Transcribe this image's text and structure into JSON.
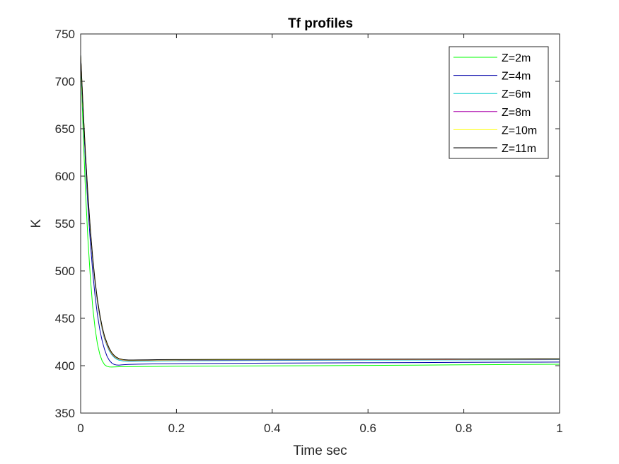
{
  "chart_data": {
    "type": "line",
    "title": "Tf profiles",
    "xlabel": "Time sec",
    "ylabel": "K",
    "xlim": [
      0,
      1
    ],
    "ylim": [
      350,
      750
    ],
    "xticks": [
      0,
      0.2,
      0.4,
      0.6,
      0.8,
      1
    ],
    "xtick_labels": [
      "0",
      "0.2",
      "0.4",
      "0.6",
      "0.8",
      "1"
    ],
    "yticks": [
      350,
      400,
      450,
      500,
      550,
      600,
      650,
      700,
      750
    ],
    "ytick_labels": [
      "350",
      "400",
      "450",
      "500",
      "550",
      "600",
      "650",
      "700",
      "750"
    ],
    "grid": false,
    "legend_position": "top-right",
    "series": [
      {
        "name": "Z=2m",
        "color": "#00ff00",
        "x": [
          0,
          0.005,
          0.01,
          0.015,
          0.02,
          0.025,
          0.03,
          0.035,
          0.04,
          0.045,
          0.05,
          0.055,
          0.06,
          0.065,
          0.07,
          0.08,
          0.1,
          0.15,
          0.2,
          0.3,
          0.4,
          0.5,
          0.6,
          0.7,
          0.8,
          0.9,
          1.0
        ],
        "y": [
          728,
          650,
          585,
          535,
          495,
          463,
          440,
          423,
          412,
          405,
          401,
          399.3,
          398.7,
          398.6,
          398.7,
          398.9,
          399.0,
          399.2,
          399.4,
          399.6,
          399.8,
          400.0,
          400.3,
          400.6,
          400.9,
          401.2,
          401.5
        ]
      },
      {
        "name": "Z=4m",
        "color": "#0000aa",
        "x": [
          0,
          0.005,
          0.01,
          0.015,
          0.02,
          0.025,
          0.03,
          0.035,
          0.04,
          0.045,
          0.05,
          0.055,
          0.06,
          0.065,
          0.07,
          0.075,
          0.08,
          0.085,
          0.09,
          0.1,
          0.12,
          0.15,
          0.2,
          0.3,
          0.4,
          0.5,
          0.6,
          0.7,
          0.8,
          0.9,
          1.0
        ],
        "y": [
          728,
          668,
          615,
          570,
          532,
          500,
          474,
          454,
          438,
          426,
          417,
          410,
          405.5,
          402.8,
          401.3,
          400.7,
          400.6,
          400.8,
          401.0,
          401.3,
          401.6,
          401.9,
          402.1,
          402.4,
          402.7,
          402.9,
          403.1,
          403.3,
          403.5,
          403.7,
          403.8
        ]
      },
      {
        "name": "Z=6m",
        "color": "#00cccc",
        "x": [
          0,
          0.005,
          0.01,
          0.015,
          0.02,
          0.025,
          0.03,
          0.035,
          0.04,
          0.045,
          0.05,
          0.055,
          0.06,
          0.065,
          0.07,
          0.075,
          0.08,
          0.09,
          0.1,
          0.11,
          0.12,
          0.14,
          0.16,
          0.2,
          0.3,
          0.4,
          0.5,
          0.6,
          0.7,
          0.8,
          0.9,
          1.0
        ],
        "y": [
          728,
          672,
          622,
          579,
          543,
          512,
          487,
          467,
          451,
          438,
          428,
          421,
          415.5,
          411.5,
          408.7,
          406.9,
          405.8,
          404.8,
          404.6,
          404.6,
          404.7,
          404.8,
          404.9,
          405.1,
          405.3,
          405.5,
          405.7,
          405.9,
          406.0,
          406.1,
          406.2,
          406.3
        ]
      },
      {
        "name": "Z=8m",
        "color": "#aa00aa",
        "x": [
          0,
          0.005,
          0.01,
          0.015,
          0.02,
          0.025,
          0.03,
          0.035,
          0.04,
          0.045,
          0.05,
          0.055,
          0.06,
          0.065,
          0.07,
          0.075,
          0.08,
          0.09,
          0.1,
          0.11,
          0.12,
          0.14,
          0.16,
          0.2,
          0.3,
          0.4,
          0.5,
          0.6,
          0.7,
          0.8,
          0.9,
          1.0
        ],
        "y": [
          728,
          673,
          623,
          580,
          544,
          513,
          488,
          468,
          452,
          439,
          429,
          422,
          416.5,
          412.5,
          409.7,
          407.9,
          406.8,
          405.7,
          405.4,
          405.4,
          405.5,
          405.6,
          405.7,
          405.8,
          406.0,
          406.1,
          406.2,
          406.3,
          406.4,
          406.5,
          406.6,
          406.7
        ]
      },
      {
        "name": "Z=10m",
        "color": "#ffff00",
        "x": [
          0,
          0.005,
          0.01,
          0.015,
          0.02,
          0.025,
          0.03,
          0.035,
          0.04,
          0.045,
          0.05,
          0.055,
          0.06,
          0.065,
          0.07,
          0.075,
          0.08,
          0.09,
          0.1,
          0.11,
          0.12,
          0.14,
          0.16,
          0.2,
          0.3,
          0.4,
          0.5,
          0.6,
          0.7,
          0.8,
          0.9,
          1.0
        ],
        "y": [
          728,
          673,
          624,
          581,
          545,
          514,
          489,
          469,
          453,
          440,
          430,
          423,
          417.2,
          413.1,
          410.2,
          408.3,
          407.1,
          406.0,
          405.7,
          405.7,
          405.8,
          405.9,
          406.0,
          406.1,
          406.3,
          406.4,
          406.5,
          406.6,
          406.7,
          406.8,
          406.9,
          407.0
        ]
      },
      {
        "name": "Z=11m",
        "color": "#000000",
        "x": [
          0,
          0.005,
          0.01,
          0.015,
          0.02,
          0.025,
          0.03,
          0.035,
          0.04,
          0.045,
          0.05,
          0.055,
          0.06,
          0.065,
          0.07,
          0.075,
          0.08,
          0.09,
          0.1,
          0.11,
          0.12,
          0.14,
          0.16,
          0.2,
          0.3,
          0.4,
          0.5,
          0.6,
          0.7,
          0.8,
          0.9,
          1.0
        ],
        "y": [
          728,
          673,
          624,
          582,
          546,
          515,
          490,
          470,
          454,
          441,
          431,
          424,
          418,
          413.8,
          410.8,
          408.8,
          407.5,
          406.3,
          406.0,
          406.0,
          406.1,
          406.2,
          406.3,
          406.4,
          406.6,
          406.7,
          406.8,
          406.9,
          407.0,
          407.1,
          407.2,
          407.3
        ]
      }
    ]
  }
}
